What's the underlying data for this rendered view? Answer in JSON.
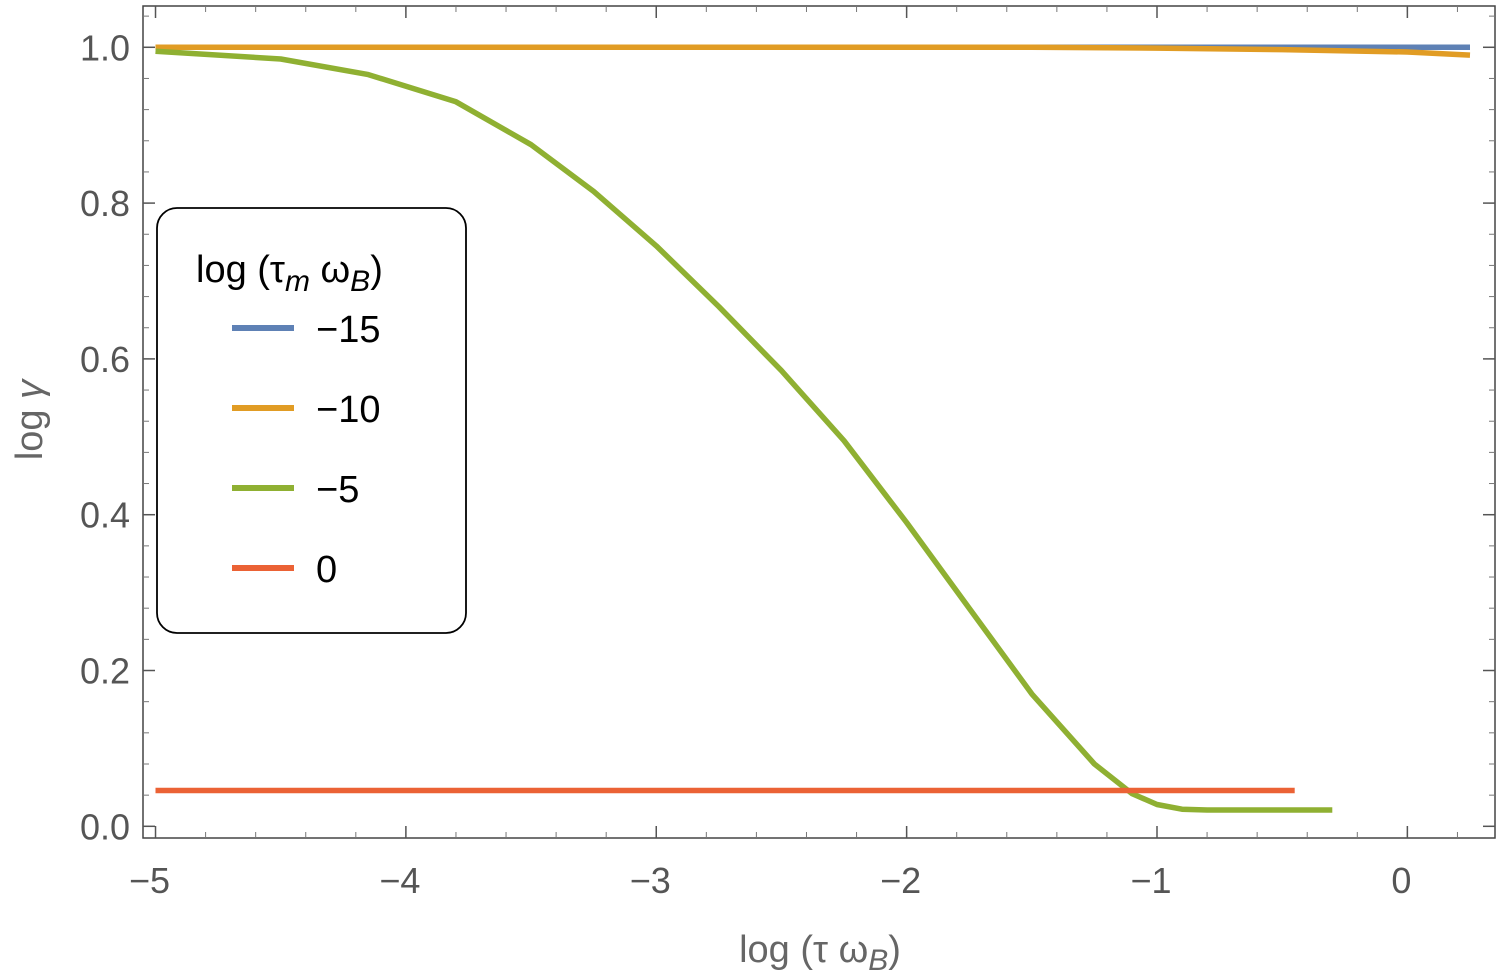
{
  "chart_data": {
    "type": "line",
    "xlabel": "log (τ ω_B)",
    "ylabel": "log γ",
    "xlim": [
      -5.05,
      0.35
    ],
    "ylim": [
      -0.015,
      1.053
    ],
    "xticks": [
      {
        "value": -5,
        "label": "−5"
      },
      {
        "value": -4,
        "label": "−4"
      },
      {
        "value": -3,
        "label": "−3"
      },
      {
        "value": -2,
        "label": "−2"
      },
      {
        "value": -1,
        "label": "−1"
      },
      {
        "value": 0,
        "label": "0"
      }
    ],
    "yticks": [
      {
        "value": 0.0,
        "label": "0.0"
      },
      {
        "value": 0.2,
        "label": "0.2"
      },
      {
        "value": 0.4,
        "label": "0.4"
      },
      {
        "value": 0.6,
        "label": "0.6"
      },
      {
        "value": 0.8,
        "label": "0.8"
      },
      {
        "value": 1.0,
        "label": "1.0"
      }
    ],
    "legend": {
      "title": "log (τ_m ω_B)",
      "position": "left"
    },
    "series": [
      {
        "name": "−15",
        "color": "#5E81B5",
        "x": [
          -5,
          -4,
          -3,
          -2,
          -1,
          0,
          0.25
        ],
        "y": [
          1.0,
          1.0,
          1.0,
          1.0,
          1.0,
          1.0,
          1.0
        ]
      },
      {
        "name": "−10",
        "color": "#E19C24",
        "x": [
          -5,
          -4,
          -3,
          -2,
          -1.5,
          -1,
          -0.5,
          0,
          0.25
        ],
        "y": [
          1.0,
          1.0,
          1.0,
          1.0,
          1.0,
          0.999,
          0.997,
          0.994,
          0.99
        ]
      },
      {
        "name": "−5",
        "color": "#8FB032",
        "x": [
          -5,
          -4.5,
          -4.15,
          -3.8,
          -3.5,
          -3.25,
          -3.0,
          -2.75,
          -2.5,
          -2.25,
          -2.0,
          -1.75,
          -1.5,
          -1.25,
          -1.1,
          -1.0,
          -0.9,
          -0.8,
          -0.5,
          -0.3
        ],
        "y": [
          0.995,
          0.985,
          0.965,
          0.93,
          0.875,
          0.815,
          0.745,
          0.667,
          0.585,
          0.495,
          0.39,
          0.28,
          0.17,
          0.08,
          0.042,
          0.028,
          0.022,
          0.021,
          0.021,
          0.021
        ]
      },
      {
        "name": "0",
        "color": "#EB6235",
        "x": [
          -5,
          -0.45
        ],
        "y": [
          0.046,
          0.046
        ]
      }
    ]
  }
}
